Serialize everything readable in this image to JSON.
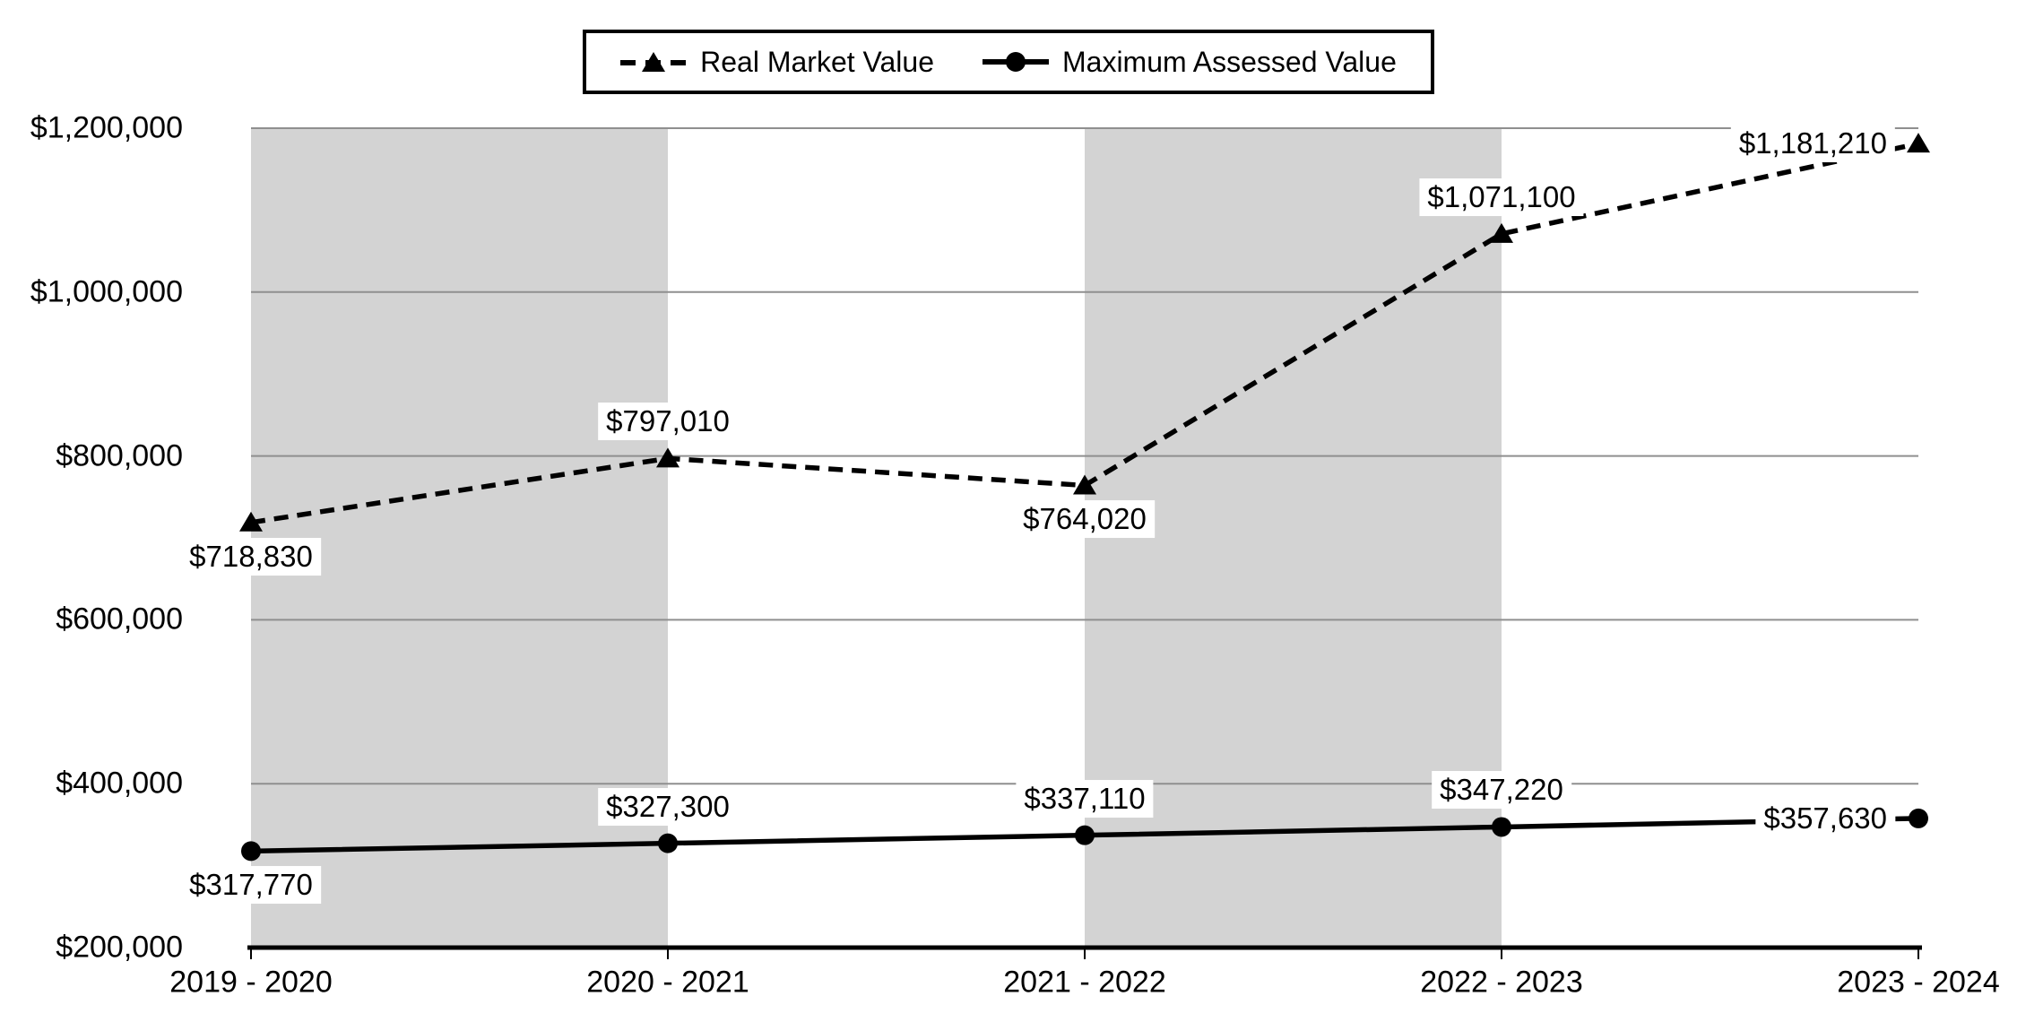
{
  "chart_data": {
    "type": "line",
    "title": "",
    "xlabel": "",
    "ylabel": "",
    "categories": [
      "2019 - 2020",
      "2020 - 2021",
      "2021 - 2022",
      "2022 - 2023",
      "2023 - 2024"
    ],
    "series": [
      {
        "name": "Real Market Value",
        "line_style": "dashed",
        "marker": "triangle",
        "color": "#000000",
        "values": [
          718830,
          797010,
          764020,
          1071100,
          1181210
        ],
        "labels": [
          "$718,830",
          "$797,010",
          "$764,020",
          "$1,071,100",
          "$1,181,210"
        ],
        "label_pos": [
          "below",
          "above",
          "below",
          "above",
          "left"
        ]
      },
      {
        "name": "Maximum Assessed Value",
        "line_style": "solid",
        "marker": "circle",
        "color": "#000000",
        "values": [
          317770,
          327300,
          337110,
          347220,
          357630
        ],
        "labels": [
          "$317,770",
          "$327,300",
          "$337,110",
          "$347,220",
          "$357,630"
        ],
        "label_pos": [
          "below",
          "above",
          "above",
          "above",
          "left"
        ]
      }
    ],
    "y_axis": {
      "ticks": [
        "$1,200,000",
        "$1,000,000",
        "$800,000",
        "$600,000",
        "$400,000",
        "$200,000"
      ],
      "min": 200000,
      "max": 1200000,
      "step": 200000
    },
    "ylim": [
      200000,
      1200000
    ],
    "grid": "horizontal",
    "legend_position": "top-center",
    "shaded_bands": [
      [
        0,
        1
      ],
      [
        2,
        3
      ]
    ],
    "colors": {
      "band": "#d3d3d3",
      "gridline": "#8f8f8f",
      "axis": "#000000",
      "text": "#000000",
      "background": "#ffffff"
    }
  }
}
